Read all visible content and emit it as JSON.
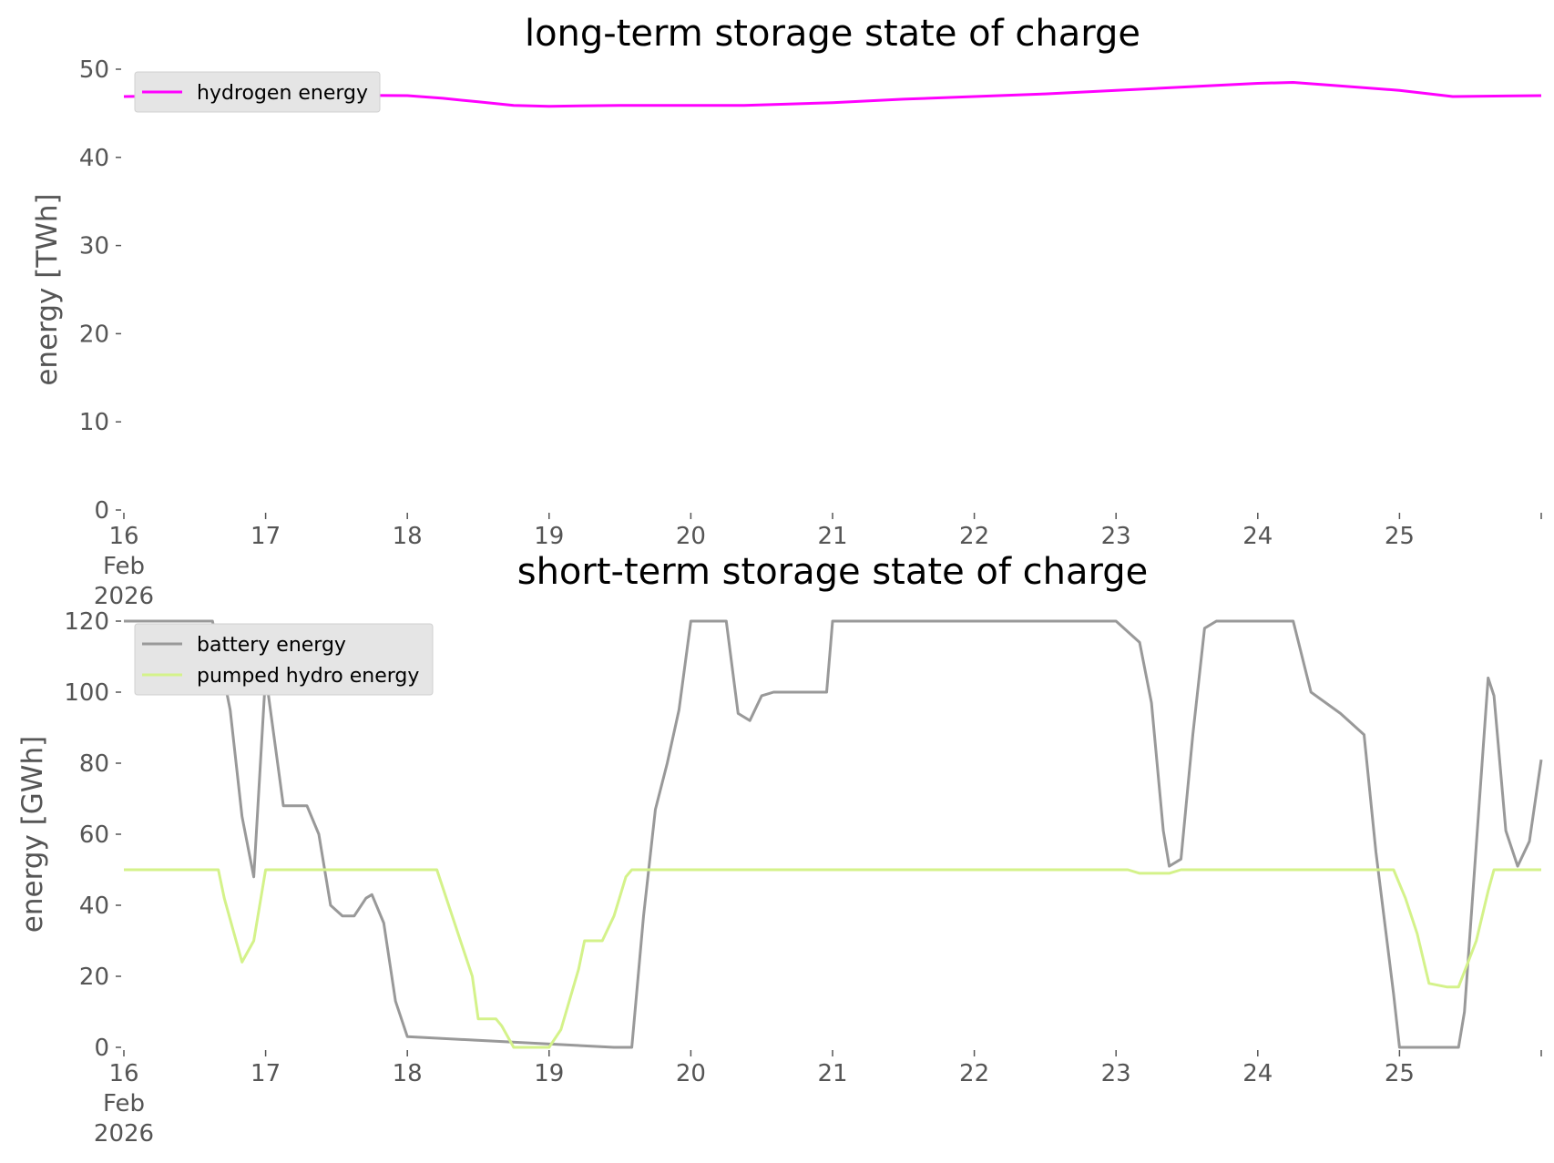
{
  "chart_data": [
    {
      "type": "line",
      "title": "long-term storage state of charge",
      "xlabel": "",
      "ylabel": "energy [TWh]",
      "xlim": [
        "2026-02-16T00:00",
        "2026-02-26T00:00"
      ],
      "ylim": [
        0,
        50
      ],
      "yticks": [
        0,
        10,
        20,
        30,
        40,
        50
      ],
      "xtick_labels": [
        "16\nFeb\n2026",
        "17",
        "18",
        "19",
        "20",
        "21",
        "22",
        "23",
        "24",
        "25"
      ],
      "grid": false,
      "legend_position": "upper left",
      "series": [
        {
          "name": "hydrogen energy",
          "color": "#ff00ff",
          "x": [
            "2026-02-16T00:00",
            "2026-02-17T00:00",
            "2026-02-18T00:00",
            "2026-02-18T06:00",
            "2026-02-18T12:00",
            "2026-02-18T18:00",
            "2026-02-19T00:00",
            "2026-02-19T12:00",
            "2026-02-20T00:00",
            "2026-02-20T09:00",
            "2026-02-21T00:00",
            "2026-02-21T12:00",
            "2026-02-22T00:00",
            "2026-02-22T12:00",
            "2026-02-23T00:00",
            "2026-02-23T12:00",
            "2026-02-24T00:00",
            "2026-02-24T06:00",
            "2026-02-24T12:00",
            "2026-02-25T00:00",
            "2026-02-25T09:00",
            "2026-02-26T00:00"
          ],
          "y": [
            46.9,
            47.1,
            47.0,
            46.7,
            46.3,
            45.9,
            45.8,
            45.9,
            45.9,
            45.9,
            46.2,
            46.6,
            46.9,
            47.2,
            47.6,
            48.0,
            48.4,
            48.5,
            48.2,
            47.6,
            46.9,
            47.0
          ]
        }
      ]
    },
    {
      "type": "line",
      "title": "short-term storage state of charge",
      "xlabel": "",
      "ylabel": "energy [GWh]",
      "xlim": [
        "2026-02-16T00:00",
        "2026-02-26T00:00"
      ],
      "ylim": [
        0,
        120
      ],
      "yticks": [
        0,
        20,
        40,
        60,
        80,
        100,
        120
      ],
      "xtick_labels": [
        "16\nFeb\n2026",
        "17",
        "18",
        "19",
        "20",
        "21",
        "22",
        "23",
        "24",
        "25"
      ],
      "grid": false,
      "legend_position": "upper left",
      "series": [
        {
          "name": "battery energy",
          "color": "#999999",
          "x": [
            "2026-02-16T00:00",
            "2026-02-16T15:00",
            "2026-02-16T18:00",
            "2026-02-16T20:00",
            "2026-02-16T22:00",
            "2026-02-17T00:00",
            "2026-02-17T03:00",
            "2026-02-17T07:00",
            "2026-02-17T09:00",
            "2026-02-17T11:00",
            "2026-02-17T13:00",
            "2026-02-17T15:00",
            "2026-02-17T17:00",
            "2026-02-17T18:00",
            "2026-02-17T20:00",
            "2026-02-17T22:00",
            "2026-02-18T00:00",
            "2026-02-19T11:00",
            "2026-02-19T14:00",
            "2026-02-19T16:00",
            "2026-02-19T18:00",
            "2026-02-19T20:00",
            "2026-02-19T22:00",
            "2026-02-20T00:00",
            "2026-02-20T06:00",
            "2026-02-20T08:00",
            "2026-02-20T10:00",
            "2026-02-20T12:00",
            "2026-02-20T14:00",
            "2026-02-20T23:00",
            "2026-02-21T00:00",
            "2026-02-22T00:00",
            "2026-02-23T00:00",
            "2026-02-23T04:00",
            "2026-02-23T06:00",
            "2026-02-23T08:00",
            "2026-02-23T09:00",
            "2026-02-23T11:00",
            "2026-02-23T13:00",
            "2026-02-23T15:00",
            "2026-02-23T17:00",
            "2026-02-24T06:00",
            "2026-02-24T09:00",
            "2026-02-24T14:00",
            "2026-02-24T18:00",
            "2026-02-24T20:00",
            "2026-02-24T23:00",
            "2026-02-25T00:00",
            "2026-02-25T10:00",
            "2026-02-25T11:00",
            "2026-02-25T13:00",
            "2026-02-25T15:00",
            "2026-02-25T16:00",
            "2026-02-25T18:00",
            "2026-02-25T20:00",
            "2026-02-25T22:00",
            "2026-02-26T00:00"
          ],
          "y": [
            120,
            120,
            95,
            65,
            48,
            105,
            68,
            68,
            60,
            40,
            37,
            37,
            42,
            43,
            35,
            13,
            3,
            0,
            0,
            37,
            67,
            80,
            95,
            120,
            120,
            94,
            92,
            99,
            100,
            100,
            120,
            120,
            120,
            114,
            97,
            61,
            51,
            53,
            88,
            118,
            120,
            120,
            100,
            94,
            88,
            55,
            15,
            0,
            0,
            10,
            57,
            104,
            99,
            61,
            51,
            58,
            81
          ]
        },
        {
          "name": "pumped hydro energy",
          "color": "#d4f28a",
          "x": [
            "2026-02-16T00:00",
            "2026-02-16T16:00",
            "2026-02-16T17:00",
            "2026-02-16T19:00",
            "2026-02-16T20:00",
            "2026-02-16T22:00",
            "2026-02-17T00:00",
            "2026-02-18T05:00",
            "2026-02-18T09:00",
            "2026-02-18T11:00",
            "2026-02-18T12:00",
            "2026-02-18T15:00",
            "2026-02-18T16:00",
            "2026-02-18T18:00",
            "2026-02-19T00:00",
            "2026-02-19T02:00",
            "2026-02-19T05:00",
            "2026-02-19T06:00",
            "2026-02-19T08:00",
            "2026-02-19T09:00",
            "2026-02-19T11:00",
            "2026-02-19T13:00",
            "2026-02-19T14:00",
            "2026-02-23T02:00",
            "2026-02-23T04:00",
            "2026-02-23T09:00",
            "2026-02-23T11:00",
            "2026-02-24T23:00",
            "2026-02-25T01:00",
            "2026-02-25T03:00",
            "2026-02-25T05:00",
            "2026-02-25T08:00",
            "2026-02-25T10:00",
            "2026-02-25T13:00",
            "2026-02-25T15:00",
            "2026-02-25T16:00",
            "2026-02-26T00:00"
          ],
          "y": [
            50,
            50,
            42,
            30,
            24,
            30,
            50,
            50,
            30,
            20,
            8,
            8,
            6,
            0,
            0,
            5,
            22,
            30,
            30,
            30,
            37,
            48,
            50,
            50,
            49,
            49,
            50,
            50,
            42,
            32,
            18,
            17,
            17,
            30,
            44,
            50,
            50
          ]
        }
      ]
    }
  ]
}
